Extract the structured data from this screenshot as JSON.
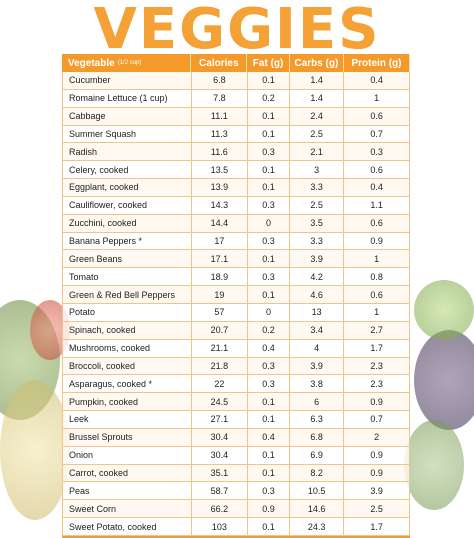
{
  "title": "VEGGIES",
  "header": {
    "vegetable": "Vegetable",
    "vegetable_unit": "(1/2 cup)",
    "calories": "Calories",
    "fat": "Fat (g)",
    "carbs": "Carbs (g)",
    "protein": "Protein (g)"
  },
  "rows": [
    {
      "name": "Cucumber",
      "cal": "6.8",
      "fat": "0.1",
      "carbs": "1.4",
      "protein": "0.4"
    },
    {
      "name": "Romaine Lettuce (1 cup)",
      "cal": "7.8",
      "fat": "0.2",
      "carbs": "1.4",
      "protein": "1"
    },
    {
      "name": "Cabbage",
      "cal": "11.1",
      "fat": "0.1",
      "carbs": "2.4",
      "protein": "0.6"
    },
    {
      "name": "Summer Squash",
      "cal": "11.3",
      "fat": "0.1",
      "carbs": "2.5",
      "protein": "0.7"
    },
    {
      "name": "Radish",
      "cal": "11.6",
      "fat": "0.3",
      "carbs": "2.1",
      "protein": "0.3"
    },
    {
      "name": "Celery, cooked",
      "cal": "13.5",
      "fat": "0.1",
      "carbs": "3",
      "protein": "0.6"
    },
    {
      "name": "Eggplant, cooked",
      "cal": "13.9",
      "fat": "0.1",
      "carbs": "3.3",
      "protein": "0.4"
    },
    {
      "name": "Cauliflower, cooked",
      "cal": "14.3",
      "fat": "0.3",
      "carbs": "2.5",
      "protein": "1.1"
    },
    {
      "name": "Zucchini, cooked",
      "cal": "14.4",
      "fat": "0",
      "carbs": "3.5",
      "protein": "0.6"
    },
    {
      "name": "Banana Peppers *",
      "cal": "17",
      "fat": "0.3",
      "carbs": "3.3",
      "protein": "0.9"
    },
    {
      "name": "Green Beans",
      "cal": "17.1",
      "fat": "0.1",
      "carbs": "3.9",
      "protein": "1"
    },
    {
      "name": "Tomato",
      "cal": "18.9",
      "fat": "0.3",
      "carbs": "4.2",
      "protein": "0.8"
    },
    {
      "name": "Green & Red Bell Peppers",
      "cal": "19",
      "fat": "0.1",
      "carbs": "4.6",
      "protein": "0.6"
    },
    {
      "name": "Potato",
      "cal": "57",
      "fat": "0",
      "carbs": "13",
      "protein": "1"
    },
    {
      "name": "Spinach, cooked",
      "cal": "20.7",
      "fat": "0.2",
      "carbs": "3.4",
      "protein": "2.7"
    },
    {
      "name": "Mushrooms, cooked",
      "cal": "21.1",
      "fat": "0.4",
      "carbs": "4",
      "protein": "1.7"
    },
    {
      "name": "Broccoli, cooked",
      "cal": "21.8",
      "fat": "0.3",
      "carbs": "3.9",
      "protein": "2.3"
    },
    {
      "name": "Asparagus, cooked *",
      "cal": "22",
      "fat": "0.3",
      "carbs": "3.8",
      "protein": "2.3"
    },
    {
      "name": "Pumpkin, cooked",
      "cal": "24.5",
      "fat": "0.1",
      "carbs": "6",
      "protein": "0.9"
    },
    {
      "name": "Leek",
      "cal": "27.1",
      "fat": "0.1",
      "carbs": "6.3",
      "protein": "0.7"
    },
    {
      "name": "Brussel Sprouts",
      "cal": "30.4",
      "fat": "0.4",
      "carbs": "6.8",
      "protein": "2"
    },
    {
      "name": "Onion",
      "cal": "30.4",
      "fat": "0.1",
      "carbs": "6.9",
      "protein": "0.9"
    },
    {
      "name": "Carrot, cooked",
      "cal": "35.1",
      "fat": "0.1",
      "carbs": "8.2",
      "protein": "0.9"
    },
    {
      "name": "Peas",
      "cal": "58.7",
      "fat": "0.3",
      "carbs": "10.5",
      "protein": "3.9"
    },
    {
      "name": "Sweet Corn",
      "cal": "66.2",
      "fat": "0.9",
      "carbs": "14.6",
      "protein": "2.5"
    },
    {
      "name": "Sweet Potato, cooked",
      "cal": "103",
      "fat": "0.1",
      "carbs": "24.3",
      "protein": "1.7"
    }
  ],
  "colors": {
    "accent": "#f39a2b",
    "title": "#f4a236",
    "grid": "#f3c48a"
  }
}
